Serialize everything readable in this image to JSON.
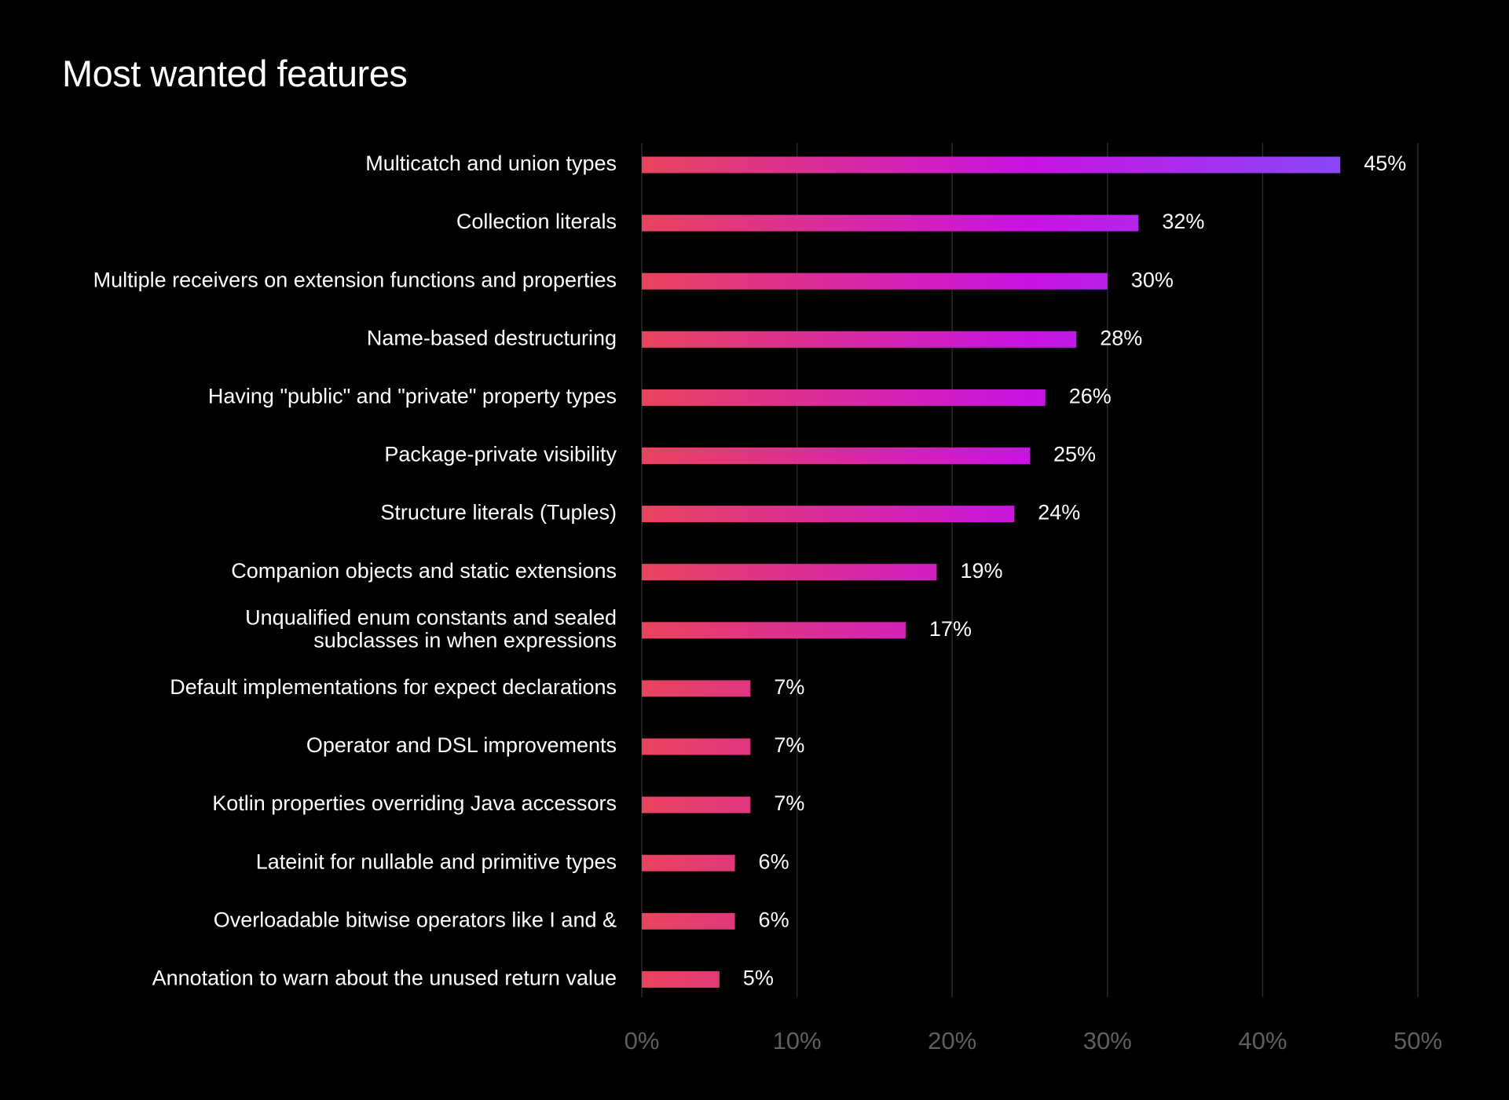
{
  "chart_data": {
    "type": "bar",
    "orientation": "horizontal",
    "title": "Most wanted features",
    "xlabel": "",
    "ylabel": "",
    "xlim": [
      0,
      50
    ],
    "xticks": [
      "0%",
      "10%",
      "20%",
      "30%",
      "40%",
      "50%"
    ],
    "grid": "vertical",
    "legend": "none",
    "categories": [
      "Multicatch and union types",
      "Collection literals",
      "Multiple receivers on extension functions and properties",
      "Name-based destructuring",
      "Having \"public\" and \"private\" property types",
      "Package-private visibility",
      "Structure literals (Tuples)",
      "Companion objects and static extensions",
      "Unqualified enum constants and sealed\nsubclasses in when expressions",
      "Default implementations for expect declarations",
      "Operator and DSL improvements",
      "Kotlin properties overriding Java accessors",
      "Lateinit for nullable and primitive types",
      "Overloadable bitwise operators like I and &",
      "Annotation to warn about the unused return value"
    ],
    "values": [
      45,
      32,
      30,
      28,
      26,
      25,
      24,
      19,
      17,
      7,
      7,
      7,
      6,
      6,
      5
    ],
    "value_labels": [
      "45%",
      "32%",
      "30%",
      "28%",
      "26%",
      "25%",
      "24%",
      "19%",
      "17%",
      "7%",
      "7%",
      "7%",
      "6%",
      "6%",
      "5%"
    ],
    "colors": {
      "background": "#000000",
      "text": "#ffffff",
      "tick_text": "#5f5f5f",
      "grid": "#2a2a2a",
      "gradient": [
        "#e8445c",
        "#c912e3",
        "#7b55ff"
      ]
    }
  }
}
